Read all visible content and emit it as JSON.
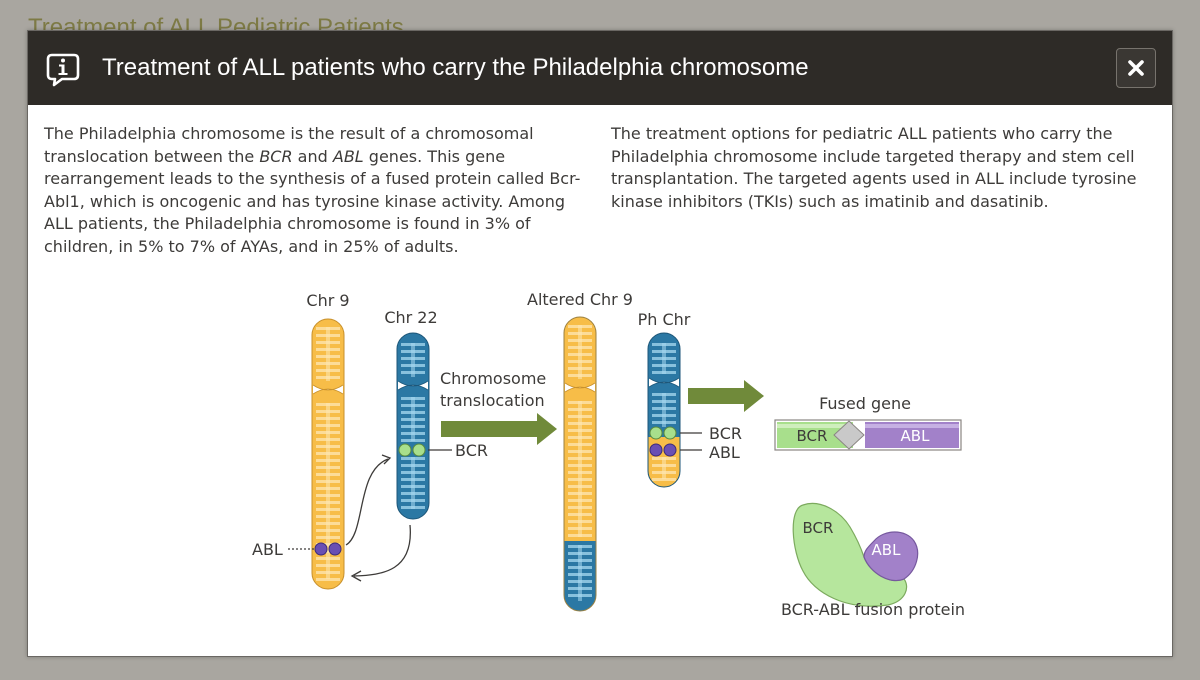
{
  "background": {
    "title": "Treatment of ALL Pediatric Patients"
  },
  "modal": {
    "icon": "info-speech-bubble-icon",
    "title": "Treatment of ALL patients who carry the Philadelphia chromosome",
    "close_icon": "close-x-icon",
    "close_label": "×"
  },
  "content": {
    "left_paragraph": [
      {
        "text": "The Philadelphia chromosome is the result of a chromosomal translocation between the "
      },
      {
        "text": "BCR",
        "italic": true
      },
      {
        "text": " and "
      },
      {
        "text": "ABL",
        "italic": true
      },
      {
        "text": " genes. This gene rearrangement leads to the synthesis of a fused protein called Bcr-Abl1, which is oncogenic and has tyrosine kinase activity. Among ALL patients, the Philadelphia chromosome is found in 3% of children, in 5% to 7% of AYAs, and in 25% of adults."
      }
    ],
    "right_paragraph": "The treatment options for pediatric ALL patients who carry the Philadelphia chromosome include targeted therapy and stem cell transplantation. The targeted agents used in ALL include tyrosine kinase inhibitors (TKIs) such as imatinib and dasatinib."
  },
  "diagram": {
    "chr9_label": "Chr 9",
    "chr22_label": "Chr 22",
    "altered_chr9_label": "Altered Chr 9",
    "ph_chr_label": "Ph Chr",
    "translocation_label_line1": "Chromosome",
    "translocation_label_line2": "translocation",
    "bcr_label": "BCR",
    "abl_label": "ABL",
    "ph_bcr_label": "BCR",
    "ph_abl_label": "ABL",
    "fused_gene_title": "Fused gene",
    "fused_bcr_label": "BCR",
    "fused_abl_label": "ABL",
    "protein_bcr_label": "BCR",
    "protein_abl_label": "ABL",
    "protein_caption": "BCR-ABL fusion protein"
  },
  "colors": {
    "header": "#2e2b27",
    "chr9_yellow": "#f7bd48",
    "chr22_blue": "#2b78a4",
    "arrow_green": "#708a3a",
    "bcr_green": "#a8df8c",
    "abl_purple": "#a281c9"
  }
}
